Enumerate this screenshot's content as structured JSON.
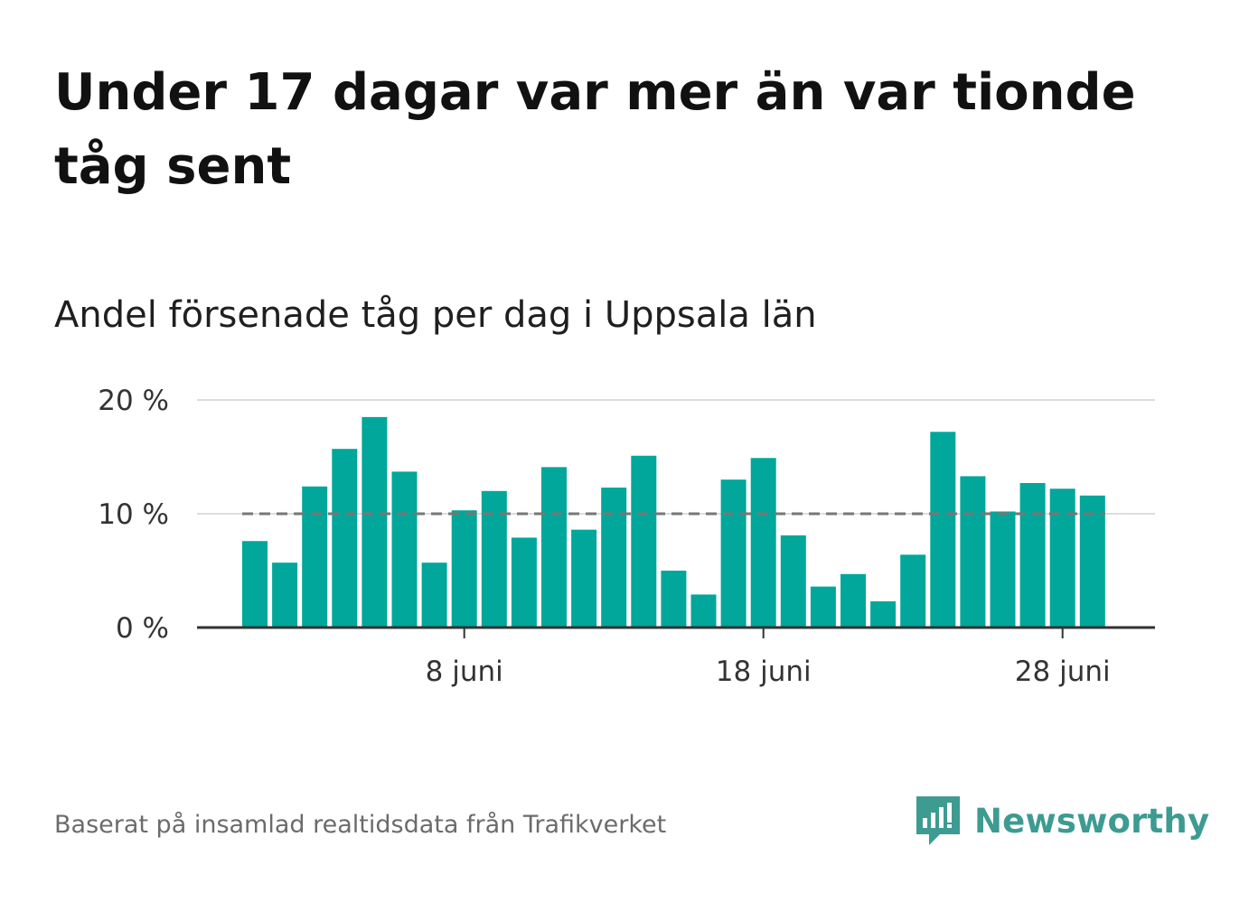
{
  "title": "Under 17 dagar var mer än var tionde tåg sent",
  "subtitle": "Andel försenade tåg per dag i Uppsala län",
  "source": "Baserat på insamlad realtidsdata från Trafikverket",
  "brand": {
    "name": "Newsworthy",
    "color": "#3d9b91",
    "icon": "newsworthy-logo-icon"
  },
  "colors": {
    "bar": "#00a79a",
    "reference_line": "#777777",
    "grid": "#dddddd",
    "axis": "#333333"
  },
  "chart_data": {
    "type": "bar",
    "categories": [
      "1 juni",
      "2 juni",
      "3 juni",
      "4 juni",
      "5 juni",
      "6 juni",
      "7 juni",
      "8 juni",
      "9 juni",
      "10 juni",
      "11 juni",
      "12 juni",
      "13 juni",
      "14 juni",
      "15 juni",
      "16 juni",
      "17 juni",
      "18 juni",
      "19 juni",
      "20 juni",
      "21 juni",
      "22 juni",
      "23 juni",
      "24 juni",
      "25 juni",
      "26 juni",
      "27 juni",
      "28 juni",
      "29 juni"
    ],
    "values": [
      7.6,
      5.7,
      12.4,
      15.7,
      18.5,
      13.7,
      5.7,
      10.3,
      12.0,
      7.9,
      14.1,
      8.6,
      12.3,
      15.1,
      5.0,
      2.9,
      13.0,
      14.9,
      8.1,
      3.6,
      4.7,
      2.3,
      6.4,
      17.2,
      13.3,
      10.2,
      12.7,
      12.2,
      11.6
    ],
    "xlabel": "",
    "ylabel": "",
    "ylim": [
      0,
      20
    ],
    "yticks": [
      0,
      10,
      20
    ],
    "ytick_labels": [
      "0 %",
      "10 %",
      "20 %"
    ],
    "xticks": [
      "8 juni",
      "18 juni",
      "28 juni"
    ],
    "xtick_labels": [
      "8 juni",
      "18 juni",
      "28 juni"
    ],
    "reference_line": {
      "value": 10,
      "style": "dashed"
    },
    "grid": true,
    "legend": "none"
  }
}
